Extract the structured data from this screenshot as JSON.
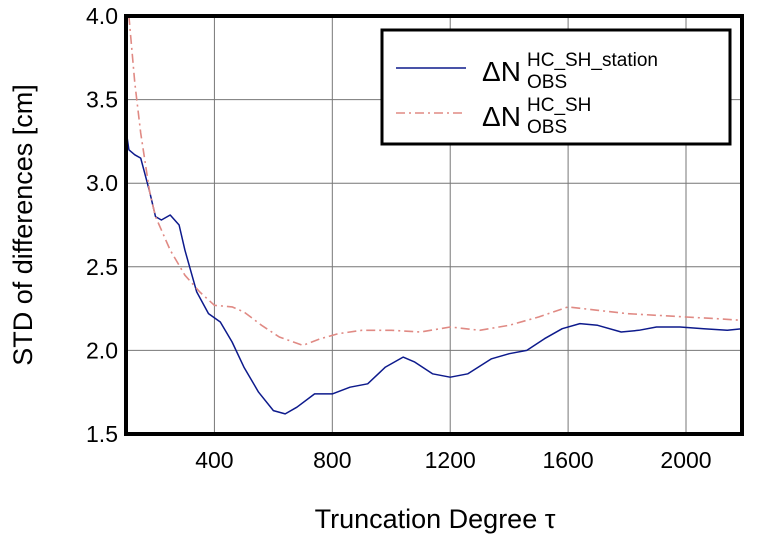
{
  "chart_data": {
    "type": "line",
    "x_label": "Truncation Degree τ",
    "y_label": "STD of differences [cm]",
    "xlim": [
      100,
      2190
    ],
    "ylim": [
      1.5,
      4.0
    ],
    "xticks": [
      400,
      800,
      1200,
      1600,
      2000
    ],
    "yticks": [
      1.5,
      {
        "value": 2,
        "label": "2.0"
      },
      2.5,
      {
        "value": 3,
        "label": "3.0"
      },
      3.5,
      {
        "value": 4,
        "label": "4.0"
      }
    ],
    "grid": true,
    "legend": "upper right",
    "series": [
      {
        "name": "ΔN",
        "superscript": "HC_SH_station",
        "subscript": "OBS",
        "color": "#0d1a8c",
        "dash": "solid",
        "x": [
          100,
          110,
          130,
          150,
          180,
          200,
          220,
          250,
          280,
          300,
          340,
          380,
          420,
          460,
          500,
          550,
          600,
          640,
          680,
          740,
          800,
          860,
          920,
          980,
          1040,
          1080,
          1140,
          1200,
          1260,
          1340,
          1400,
          1460,
          1520,
          1580,
          1640,
          1700,
          1780,
          1840,
          1900,
          1980,
          2060,
          2140,
          2190
        ],
        "values": [
          3.32,
          3.2,
          3.17,
          3.15,
          2.95,
          2.8,
          2.78,
          2.81,
          2.75,
          2.6,
          2.35,
          2.22,
          2.17,
          2.05,
          1.9,
          1.75,
          1.64,
          1.62,
          1.66,
          1.74,
          1.74,
          1.78,
          1.8,
          1.9,
          1.96,
          1.93,
          1.86,
          1.84,
          1.86,
          1.95,
          1.98,
          2.0,
          2.07,
          2.13,
          2.16,
          2.15,
          2.11,
          2.12,
          2.14,
          2.14,
          2.13,
          2.12,
          2.13
        ]
      },
      {
        "name": "ΔN",
        "superscript": "HC_SH",
        "subscript": "OBS",
        "color": "#e08a84",
        "dash": "dashdot",
        "x": [
          110,
          130,
          150,
          180,
          200,
          250,
          300,
          350,
          400,
          460,
          500,
          560,
          620,
          700,
          760,
          820,
          900,
          1000,
          1100,
          1200,
          1300,
          1400,
          1500,
          1600,
          1700,
          1800,
          1900,
          2000,
          2100,
          2190
        ],
        "values": [
          4.0,
          3.6,
          3.3,
          2.95,
          2.8,
          2.6,
          2.45,
          2.35,
          2.27,
          2.26,
          2.23,
          2.15,
          2.08,
          2.03,
          2.07,
          2.1,
          2.12,
          2.12,
          2.11,
          2.14,
          2.12,
          2.15,
          2.2,
          2.26,
          2.24,
          2.22,
          2.21,
          2.2,
          2.19,
          2.18
        ]
      }
    ]
  }
}
